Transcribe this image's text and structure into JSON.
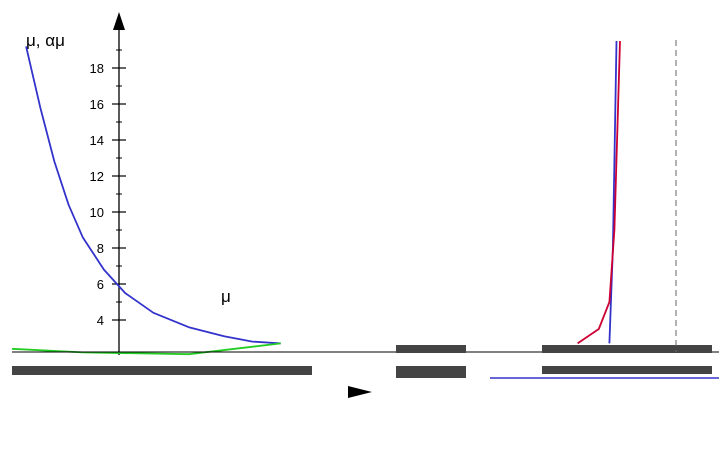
{
  "chart_data": {
    "type": "line",
    "ylabel": "μ, αμ",
    "y_ticks": [
      4,
      6,
      8,
      10,
      12,
      14,
      16,
      18
    ],
    "ylim": [
      2.5,
      19.5
    ],
    "grid": false,
    "series": [
      {
        "name": "μ",
        "color": "#3333cc",
        "description_free_points": [
          {
            "x": 0.02,
            "y": 19.2
          },
          {
            "x": 0.04,
            "y": 15.8
          },
          {
            "x": 0.06,
            "y": 12.8
          },
          {
            "x": 0.08,
            "y": 10.4
          },
          {
            "x": 0.1,
            "y": 8.6
          },
          {
            "x": 0.13,
            "y": 6.8
          },
          {
            "x": 0.16,
            "y": 5.5
          },
          {
            "x": 0.2,
            "y": 4.4
          },
          {
            "x": 0.25,
            "y": 3.6
          },
          {
            "x": 0.3,
            "y": 3.1
          },
          {
            "x": 0.34,
            "y": 2.8
          },
          {
            "x": 0.38,
            "y": 2.7
          }
        ]
      },
      {
        "color": "#3333cc",
        "description_free_points": [
          {
            "x": 0.845,
            "y": 2.7
          },
          {
            "x": 0.85,
            "y": 8
          },
          {
            "x": 0.855,
            "y": 19.5
          }
        ]
      },
      {
        "color": "#cc0033",
        "description_free_points": [
          {
            "x": 0.8,
            "y": 2.7
          },
          {
            "x": 0.83,
            "y": 3.5
          },
          {
            "x": 0.845,
            "y": 5
          },
          {
            "x": 0.852,
            "y": 9
          },
          {
            "x": 0.86,
            "y": 19.5
          }
        ]
      },
      {
        "color": "#22cc22",
        "description_free_points": [
          {
            "x": 0.0,
            "y": 2.4
          },
          {
            "x": 0.1,
            "y": 2.2
          },
          {
            "x": 0.25,
            "y": 2.1
          },
          {
            "x": 0.38,
            "y": 2.7
          }
        ]
      }
    ]
  },
  "labels": {
    "y_axis_title": "μ, αμ",
    "curve_label": "μ"
  }
}
